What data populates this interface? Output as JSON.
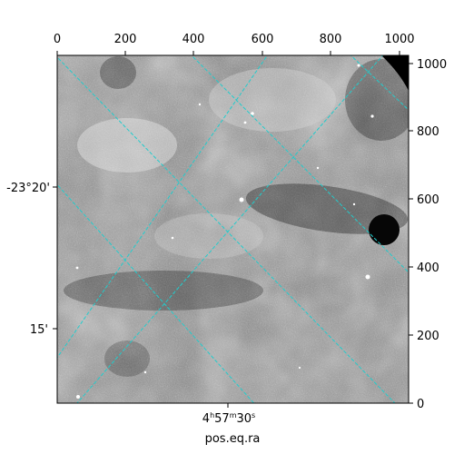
{
  "plot": {
    "xlabel": "pos.eq.ra",
    "top_ticks": [
      "0",
      "200",
      "400",
      "600",
      "800",
      "1000"
    ],
    "right_ticks": [
      "0",
      "200",
      "400",
      "600",
      "800",
      "1000"
    ],
    "left_ticks": [
      "-23°20'",
      "15'"
    ],
    "bottom_tick": {
      "h": "4",
      "m": "57",
      "s": "30"
    },
    "grid_color": "#22cccc",
    "image_colormap": "gray"
  }
}
